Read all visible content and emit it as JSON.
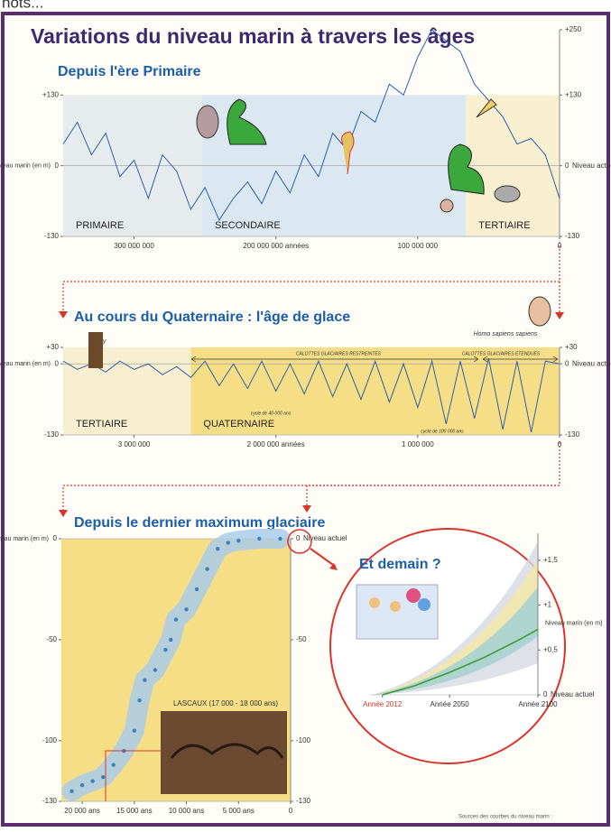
{
  "header": {
    "cut_text": "hots...",
    "title": "Variations du niveau marin à travers les âges"
  },
  "chart_data": [
    {
      "type": "line",
      "title": "Depuis l'ère Primaire",
      "y_label": "Niveau marin (en m)",
      "reference_label": "Niveau actuel",
      "x": [
        350000000,
        340000000,
        330000000,
        320000000,
        310000000,
        300000000,
        290000000,
        280000000,
        270000000,
        260000000,
        250000000,
        240000000,
        230000000,
        220000000,
        210000000,
        200000000,
        190000000,
        180000000,
        170000000,
        160000000,
        150000000,
        140000000,
        130000000,
        120000000,
        110000000,
        100000000,
        90000000,
        80000000,
        70000000,
        60000000,
        50000000,
        40000000,
        30000000,
        20000000,
        10000000,
        0
      ],
      "series": [
        {
          "color": "#2f5fa8",
          "values": [
            40,
            80,
            20,
            60,
            -20,
            10,
            -60,
            20,
            -10,
            -80,
            -40,
            -100,
            -60,
            -30,
            -70,
            -10,
            -50,
            20,
            -20,
            60,
            30,
            100,
            80,
            150,
            130,
            200,
            250,
            230,
            210,
            150,
            120,
            90,
            40,
            50,
            20,
            -60
          ]
        }
      ],
      "periods": [
        {
          "label": "PRIMAIRE",
          "from": 350000000,
          "to": 252000000,
          "color": "#e6ebee"
        },
        {
          "label": "SECONDAIRE",
          "from": 252000000,
          "to": 66000000,
          "color": "#dbe8f2"
        },
        {
          "label": "TERTIAIRE",
          "from": 66000000,
          "to": 0,
          "color": "#f7efcf"
        }
      ],
      "xlim": [
        350000000,
        0
      ],
      "xticks": [
        {
          "value": 300000000,
          "label": "300 000 000"
        },
        {
          "value": 200000000,
          "label": "200 000 000 années"
        },
        {
          "value": 100000000,
          "label": "100 000 000"
        },
        0
      ],
      "ylim": [
        -130,
        250
      ],
      "yticks": [
        {
          "value": 130,
          "label": "+130"
        },
        0,
        -130
      ],
      "y2ticks": [
        {
          "value": 250,
          "label": "+250"
        },
        {
          "value": 130,
          "label": "+130"
        },
        0,
        -130
      ]
    },
    {
      "type": "line",
      "title": "Au cours du Quaternaire : l'âge de glace",
      "y_label": "Niveau marin (en m)",
      "reference_label": "Niveau actuel",
      "annotations": [
        "Lucy",
        "Homo sapiens sapiens",
        "CALOTTES GLACIAIRES RESTREINTES",
        "CALOTTES GLACIAIRES ÉTENDUES",
        "cycle de 40 000 ans",
        "cycle de 100 000 ans"
      ],
      "x": [
        3500000,
        3400000,
        3300000,
        3200000,
        3100000,
        3000000,
        2900000,
        2800000,
        2700000,
        2600000,
        2500000,
        2400000,
        2300000,
        2200000,
        2100000,
        2000000,
        1900000,
        1800000,
        1700000,
        1600000,
        1500000,
        1400000,
        1300000,
        1200000,
        1100000,
        1000000,
        900000,
        800000,
        700000,
        600000,
        500000,
        400000,
        300000,
        200000,
        100000,
        0
      ],
      "series": [
        {
          "color": "#2f5fa8",
          "values": [
            5,
            -10,
            0,
            -15,
            5,
            -10,
            0,
            -20,
            -5,
            -25,
            5,
            -40,
            0,
            -45,
            5,
            -50,
            0,
            -55,
            5,
            -60,
            0,
            -65,
            5,
            -70,
            0,
            -80,
            5,
            -110,
            5,
            -100,
            10,
            -120,
            5,
            -125,
            5,
            0
          ]
        }
      ],
      "periods": [
        {
          "label": "TERTIAIRE",
          "from": 3500000,
          "to": 2600000,
          "color": "#f7efcf"
        },
        {
          "label": "QUATERNAIRE",
          "from": 2600000,
          "to": 0,
          "color": "#f6de86"
        }
      ],
      "xlim": [
        3500000,
        0
      ],
      "xticks": [
        {
          "value": 3000000,
          "label": "3 000 000"
        },
        {
          "value": 2000000,
          "label": "2 000 000 années"
        },
        {
          "value": 1000000,
          "label": "1 000 000"
        },
        0
      ],
      "ylim": [
        -130,
        30
      ],
      "yticks": [
        {
          "value": 30,
          "label": "+30"
        },
        0,
        -130
      ],
      "y2ticks": [
        {
          "value": 30,
          "label": "+30"
        },
        0,
        -130
      ]
    },
    {
      "type": "scatter",
      "title": "Depuis le dernier maximum glaciaire",
      "y_label": "Niveau marin (en m)",
      "reference_label": "Niveau actuel",
      "annotation": "LASCAUX (17 000 - 18 000 ans)",
      "x": [
        21000,
        20000,
        19000,
        18000,
        17000,
        16000,
        15000,
        14500,
        14000,
        13000,
        12000,
        11500,
        11000,
        10000,
        9000,
        8000,
        7000,
        6000,
        5000,
        3000,
        1000
      ],
      "series": [
        {
          "color": "#3b7fc4",
          "values": [
            -125,
            -122,
            -120,
            -118,
            -112,
            -105,
            -95,
            -80,
            -70,
            -65,
            -55,
            -50,
            -40,
            -35,
            -25,
            -15,
            -5,
            -2,
            -1,
            0,
            0
          ]
        }
      ],
      "xlim": [
        22000,
        0
      ],
      "xticks": [
        {
          "value": 20000,
          "label": "20 000 ans"
        },
        {
          "value": 15000,
          "label": "15 000 ans"
        },
        {
          "value": 10000,
          "label": "10 000 ans"
        },
        {
          "value": 5000,
          "label": "5 000 ans"
        },
        0
      ],
      "ylim": [
        -130,
        0
      ],
      "yticks": [
        0,
        -50,
        -100,
        -130
      ],
      "y2ticks": [
        0,
        -50,
        -100,
        -130
      ]
    },
    {
      "type": "line",
      "title": "Et demain ?",
      "y_label": "Niveau marin (en m)",
      "reference_label": "Niveau actuel",
      "x": [
        2012,
        2030,
        2050,
        2070,
        2090,
        2100
      ],
      "series": [
        {
          "color": "#3a9a3a",
          "values": [
            0,
            0.1,
            0.25,
            0.42,
            0.62,
            0.73
          ]
        }
      ],
      "xlim": [
        2005,
        2100
      ],
      "xticks": [
        {
          "value": 2012,
          "label": "Année 2012"
        },
        {
          "value": 2050,
          "label": "Année 2050"
        },
        {
          "value": 2100,
          "label": "Année 2100"
        }
      ],
      "ylim": [
        0,
        1.8
      ],
      "y2ticks": [
        {
          "value": 1.5,
          "label": "+1,5"
        },
        {
          "value": 1,
          "label": "+1"
        },
        {
          "value": 0.5,
          "label": "+0,5"
        },
        0
      ]
    }
  ],
  "footer": {
    "sources": "Sources des courbes du niveau marin :"
  }
}
